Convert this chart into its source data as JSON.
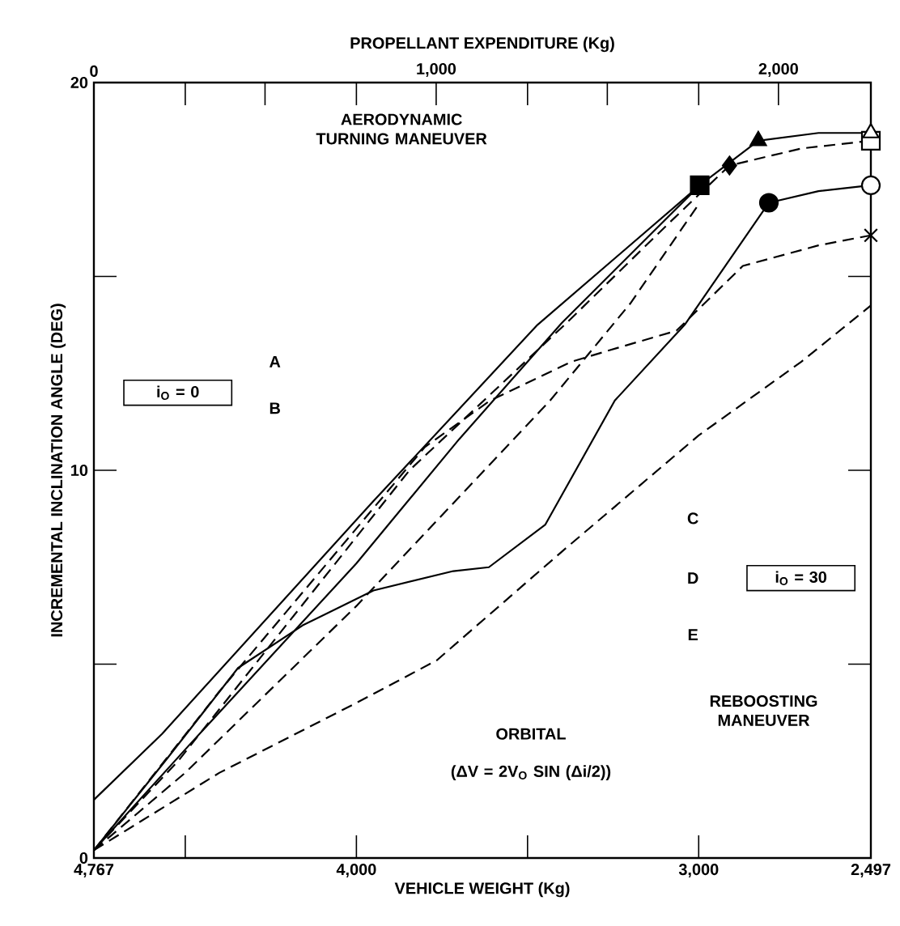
{
  "chart_data": {
    "type": "line",
    "xlabel": "VEHICLE WEIGHT (Kg)",
    "ylabel": "INCREMENTAL INCLINATION ANGLE (DEG)",
    "x2label": "PROPELLANT EXPENDITURE (Kg)",
    "xlim": [
      4767,
      2497
    ],
    "xticks": [
      {
        "value": 4767,
        "label": "4,767"
      },
      {
        "value": 4500,
        "label": null
      },
      {
        "value": 4000,
        "label": "4,000"
      },
      {
        "value": 3500,
        "label": null
      },
      {
        "value": 3000,
        "label": "3,000"
      },
      {
        "value": 2497,
        "label": "2,497"
      }
    ],
    "x2lim": [
      0,
      2270
    ],
    "x2ticks": [
      0,
      {
        "value": 500,
        "label": null
      },
      {
        "value": 1000,
        "label": "1,000"
      },
      {
        "value": 1500,
        "label": null
      },
      {
        "value": 2000,
        "label": "2,000"
      }
    ],
    "ylim": [
      0,
      20
    ],
    "yticks": [
      0,
      {
        "value": 5,
        "label": null
      },
      10,
      {
        "value": 15,
        "label": null
      },
      20
    ],
    "series": [
      {
        "color": "#000000",
        "line_style": "solid",
        "x": [
          4767,
          4568,
          3954,
          3471,
          2997,
          2826,
          2650,
          2497
        ],
        "values": [
          1.5,
          3.2,
          9.17,
          13.75,
          17.35,
          18.5,
          18.7,
          18.7
        ]
      },
      {
        "color": "#000000",
        "line_style": "dashed",
        "x": [
          4767,
          4521,
          3845,
          3386,
          3084,
          2910,
          2700,
          2497
        ],
        "values": [
          0.2,
          2.5,
          10,
          13.8,
          16.4,
          17.86,
          18.3,
          18.5
        ]
      },
      {
        "color": "#000000",
        "line_style": "solid",
        "x": [
          4767,
          4550,
          4346,
          4157,
          3950,
          3717,
          3613,
          3448,
          3245,
          3041,
          2795,
          2650,
          2497
        ],
        "values": [
          0.2,
          2.6,
          4.9,
          6,
          6.9,
          7.4,
          7.5,
          8.6,
          11.8,
          13.75,
          16.9,
          17.2,
          17.35
        ]
      },
      {
        "color": "#000000",
        "line_style": "dashed",
        "x": [
          4767,
          4400,
          4000,
          3800,
          3609,
          3372,
          3259,
          3065,
          2871,
          2650,
          2497
        ],
        "values": [
          0.2,
          4.3,
          8.5,
          10.6,
          11.8,
          12.8,
          13.1,
          13.6,
          15.27,
          15.8,
          16.06
        ]
      },
      {
        "color": "#000000",
        "line_style": "solid",
        "x": [
          4767,
          4500,
          4000,
          3700,
          3400,
          3150,
          2997
        ],
        "values": [
          0.2,
          2.8,
          7.6,
          10.8,
          13.8,
          16,
          17.35
        ]
      },
      {
        "color": "#000000",
        "line_style": "dashed",
        "x": [
          4767,
          4500,
          4000,
          3434,
          3200,
          2997
        ],
        "values": [
          0.2,
          2.2,
          6.5,
          11.8,
          14.3,
          16.9
        ]
      },
      {
        "color": "#000000",
        "line_style": "dashed",
        "x": [
          4767,
          4400,
          4000,
          3765,
          3400,
          3000,
          2700,
          2497
        ],
        "values": [
          0.2,
          2.2,
          4,
          5.1,
          7.9,
          10.9,
          12.8,
          14.25
        ]
      },
      {
        "type": "scatter",
        "marker": "square",
        "color": "#000000",
        "x": [
          2997
        ],
        "values": [
          17.35
        ]
      },
      {
        "type": "scatter",
        "marker": "diamond",
        "color": "#000000",
        "x": [
          2910
        ],
        "values": [
          17.86
        ]
      },
      {
        "type": "scatter",
        "marker": "triangle",
        "color": "#000000",
        "x": [
          2826
        ],
        "values": [
          18.5
        ]
      },
      {
        "type": "scatter",
        "marker": "circle",
        "color": "#000000",
        "x": [
          2795
        ],
        "values": [
          16.9
        ]
      },
      {
        "type": "scatter",
        "marker": "square",
        "color": "#ffffff",
        "x": [
          2497
        ],
        "values": [
          18.5
        ]
      },
      {
        "type": "scatter",
        "marker": "triangle",
        "color": "#ffffff",
        "x": [
          2497
        ],
        "values": [
          18.7
        ]
      },
      {
        "type": "scatter",
        "marker": "circle",
        "color": "#ffffff",
        "x": [
          2497
        ],
        "values": [
          17.35
        ]
      },
      {
        "type": "scatter",
        "marker": "cross",
        "color": "#000000",
        "x": [
          2497
        ],
        "values": [
          16.06
        ]
      }
    ],
    "annotations": [
      "AERODYNAMIC TURNING MANEUVER",
      "i$_{O}$ = 0",
      "A",
      "B",
      "C",
      "D",
      "E",
      "i$_{O}$ = 30",
      "ORBITAL",
      "(ΔV = 2V$_{O}$ SIN (Δi/2))",
      "REBOOSTING MANEUVER"
    ]
  }
}
